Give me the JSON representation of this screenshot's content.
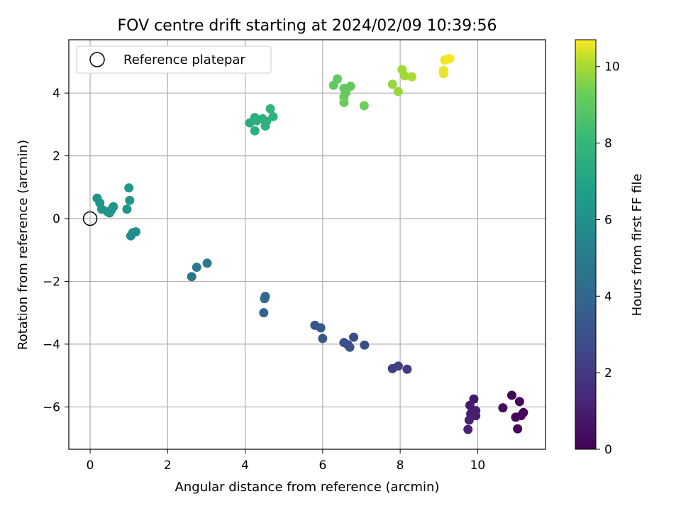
{
  "chart_data": {
    "type": "scatter",
    "title": "FOV centre drift starting at 2024/02/09 10:39:56",
    "xlabel": "Angular distance from reference (arcmin)",
    "ylabel": "Rotation from reference (arcmin)",
    "xlim": [
      -0.55,
      11.75
    ],
    "ylim": [
      -7.35,
      5.7
    ],
    "xticks": [
      0,
      2,
      4,
      6,
      8,
      10
    ],
    "yticks": [
      -6,
      -4,
      -2,
      0,
      2,
      4
    ],
    "grid": true,
    "legend": {
      "position": "top-left",
      "entries": [
        "Reference platepar"
      ]
    },
    "reference_point": {
      "x": 0,
      "y": 0
    },
    "colorbar": {
      "label": "Hours from first FF file",
      "colormap": "viridis",
      "range": [
        0,
        10.7
      ],
      "ticks": [
        0,
        2,
        4,
        6,
        8,
        10
      ]
    },
    "series": [
      {
        "points": [
          {
            "x": 10.88,
            "y": -5.63,
            "c": 0.1
          },
          {
            "x": 11.08,
            "y": -5.83,
            "c": 0.2
          },
          {
            "x": 10.65,
            "y": -6.03,
            "c": 0.4
          },
          {
            "x": 11.18,
            "y": -6.18,
            "c": 0.15
          },
          {
            "x": 11.12,
            "y": -6.28,
            "c": 0.2
          },
          {
            "x": 10.98,
            "y": -6.33,
            "c": 0.25
          },
          {
            "x": 11.03,
            "y": -6.7,
            "c": 0.3
          },
          {
            "x": 9.9,
            "y": -5.75,
            "c": 0.8
          },
          {
            "x": 9.8,
            "y": -5.95,
            "c": 0.9
          },
          {
            "x": 9.95,
            "y": -6.12,
            "c": 0.95
          },
          {
            "x": 9.82,
            "y": -6.22,
            "c": 1.0
          },
          {
            "x": 9.95,
            "y": -6.28,
            "c": 1.05
          },
          {
            "x": 9.78,
            "y": -6.42,
            "c": 1.1
          },
          {
            "x": 9.75,
            "y": -6.72,
            "c": 1.2
          },
          {
            "x": 7.8,
            "y": -4.78,
            "c": 2.2
          },
          {
            "x": 7.95,
            "y": -4.7,
            "c": 2.3
          },
          {
            "x": 8.18,
            "y": -4.8,
            "c": 2.1
          },
          {
            "x": 6.8,
            "y": -3.78,
            "c": 2.8
          },
          {
            "x": 6.55,
            "y": -3.95,
            "c": 2.9
          },
          {
            "x": 6.65,
            "y": -4.02,
            "c": 2.95
          },
          {
            "x": 6.7,
            "y": -4.1,
            "c": 3.0
          },
          {
            "x": 7.08,
            "y": -4.03,
            "c": 2.85
          },
          {
            "x": 5.8,
            "y": -3.4,
            "c": 3.2
          },
          {
            "x": 5.95,
            "y": -3.48,
            "c": 3.3
          },
          {
            "x": 6.0,
            "y": -3.82,
            "c": 3.25
          },
          {
            "x": 4.52,
            "y": -2.48,
            "c": 4.0
          },
          {
            "x": 4.5,
            "y": -2.55,
            "c": 4.05
          },
          {
            "x": 4.48,
            "y": -3.0,
            "c": 3.9
          },
          {
            "x": 2.62,
            "y": -1.85,
            "c": 4.8
          },
          {
            "x": 2.75,
            "y": -1.55,
            "c": 4.85
          },
          {
            "x": 3.02,
            "y": -1.42,
            "c": 4.9
          },
          {
            "x": 1.05,
            "y": -0.55,
            "c": 5.8
          },
          {
            "x": 1.1,
            "y": -0.45,
            "c": 5.85
          },
          {
            "x": 1.18,
            "y": -0.42,
            "c": 5.9
          },
          {
            "x": 1.0,
            "y": 0.98,
            "c": 6.4
          },
          {
            "x": 1.02,
            "y": 0.58,
            "c": 6.35
          },
          {
            "x": 0.95,
            "y": 0.3,
            "c": 6.3
          },
          {
            "x": 0.18,
            "y": 0.65,
            "c": 6.1
          },
          {
            "x": 0.25,
            "y": 0.5,
            "c": 6.15
          },
          {
            "x": 0.3,
            "y": 0.3,
            "c": 6.2
          },
          {
            "x": 0.45,
            "y": 0.22,
            "c": 6.25
          },
          {
            "x": 0.55,
            "y": 0.28,
            "c": 6.3
          },
          {
            "x": 0.6,
            "y": 0.38,
            "c": 6.35
          },
          {
            "x": 0.5,
            "y": 0.18,
            "c": 6.25
          },
          {
            "x": 4.12,
            "y": 3.05,
            "c": 7.4
          },
          {
            "x": 4.25,
            "y": 3.22,
            "c": 7.5
          },
          {
            "x": 4.3,
            "y": 3.12,
            "c": 7.55
          },
          {
            "x": 4.45,
            "y": 3.18,
            "c": 7.6
          },
          {
            "x": 4.55,
            "y": 3.1,
            "c": 7.65
          },
          {
            "x": 4.52,
            "y": 2.95,
            "c": 7.7
          },
          {
            "x": 4.25,
            "y": 2.8,
            "c": 7.45
          },
          {
            "x": 4.65,
            "y": 3.5,
            "c": 7.8
          },
          {
            "x": 4.72,
            "y": 3.25,
            "c": 7.75
          },
          {
            "x": 6.28,
            "y": 4.25,
            "c": 9.0
          },
          {
            "x": 6.38,
            "y": 4.45,
            "c": 9.05
          },
          {
            "x": 6.55,
            "y": 4.15,
            "c": 9.1
          },
          {
            "x": 6.6,
            "y": 4.02,
            "c": 9.15
          },
          {
            "x": 6.55,
            "y": 3.88,
            "c": 9.2
          },
          {
            "x": 6.72,
            "y": 4.22,
            "c": 9.1
          },
          {
            "x": 6.55,
            "y": 3.7,
            "c": 9.25
          },
          {
            "x": 7.07,
            "y": 3.6,
            "c": 9.3
          },
          {
            "x": 7.8,
            "y": 4.28,
            "c": 9.8
          },
          {
            "x": 7.95,
            "y": 4.05,
            "c": 9.85
          },
          {
            "x": 8.05,
            "y": 4.75,
            "c": 9.9
          },
          {
            "x": 8.12,
            "y": 4.55,
            "c": 9.95
          },
          {
            "x": 8.3,
            "y": 4.52,
            "c": 10.0
          },
          {
            "x": 9.12,
            "y": 4.62,
            "c": 10.5
          },
          {
            "x": 9.12,
            "y": 4.72,
            "c": 10.55
          },
          {
            "x": 9.15,
            "y": 5.05,
            "c": 10.6
          },
          {
            "x": 9.22,
            "y": 5.08,
            "c": 10.62
          },
          {
            "x": 9.28,
            "y": 5.1,
            "c": 10.65
          }
        ]
      }
    ]
  }
}
